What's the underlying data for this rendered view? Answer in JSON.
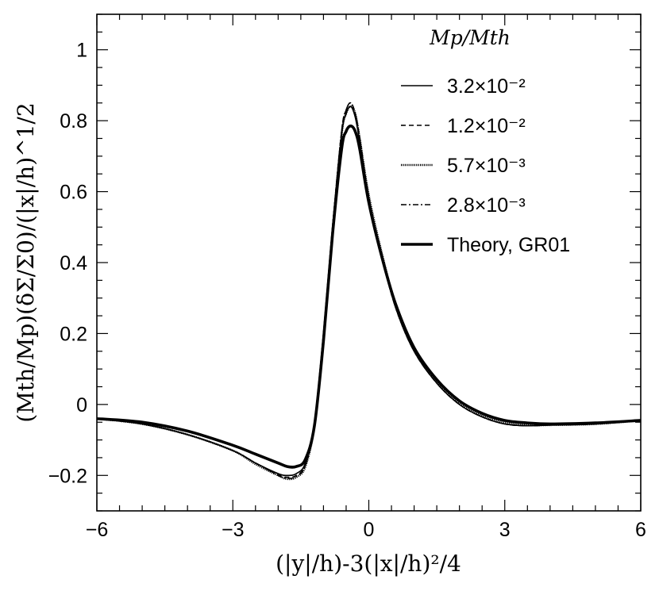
{
  "chart_data": {
    "type": "line",
    "xlabel": "(|y|/h)-3(|x|/h)²/4",
    "ylabel": "(Mth/Mp)(δΣ/Σ0)/(|x|/h)^1/2",
    "xlim": [
      -6,
      6
    ],
    "ylim": [
      -0.3,
      1.1
    ],
    "xticks": [
      -6,
      -3,
      0,
      3,
      6
    ],
    "xtick_labels": [
      "−6",
      "−3",
      "0",
      "3",
      "6"
    ],
    "yticks": [
      -0.2,
      0,
      0.2,
      0.4,
      0.6,
      0.8,
      1
    ],
    "ytick_labels": [
      "−0.2",
      "0",
      "0.2",
      "0.4",
      "0.6",
      "0.8",
      "1"
    ],
    "legend": {
      "title": "Mp/Mth",
      "position": "top-right",
      "entries": [
        "3.2×10⁻²",
        "1.2×10⁻²",
        "5.7×10⁻³",
        "2.8×10⁻³",
        "Theory, GR01"
      ]
    },
    "series": [
      {
        "name": "3.2×10⁻²",
        "style": "solid",
        "x": [
          -6,
          -5,
          -4,
          -3,
          -2.5,
          -2,
          -1.8,
          -1.6,
          -1.4,
          -1.2,
          -1,
          -0.8,
          -0.6,
          -0.5,
          -0.4,
          -0.3,
          -0.2,
          0,
          0.3,
          0.6,
          1,
          1.5,
          2,
          2.5,
          3,
          3.5,
          4,
          5,
          6
        ],
        "values": [
          -0.04,
          -0.055,
          -0.085,
          -0.13,
          -0.165,
          -0.195,
          -0.2,
          -0.195,
          -0.165,
          -0.05,
          0.2,
          0.5,
          0.76,
          0.82,
          0.84,
          0.81,
          0.74,
          0.58,
          0.41,
          0.27,
          0.15,
          0.06,
          0.0,
          -0.035,
          -0.055,
          -0.06,
          -0.058,
          -0.055,
          -0.045
        ]
      },
      {
        "name": "1.2×10⁻²",
        "style": "dashed",
        "x": [
          -6,
          -5,
          -4,
          -3,
          -2.5,
          -2,
          -1.8,
          -1.6,
          -1.4,
          -1.2,
          -1,
          -0.8,
          -0.6,
          -0.5,
          -0.4,
          -0.3,
          -0.2,
          0,
          0.3,
          0.6,
          1,
          1.5,
          2,
          2.5,
          3,
          3.5,
          4,
          5,
          6
        ],
        "values": [
          -0.04,
          -0.055,
          -0.085,
          -0.13,
          -0.165,
          -0.198,
          -0.205,
          -0.2,
          -0.17,
          -0.055,
          0.2,
          0.5,
          0.77,
          0.83,
          0.85,
          0.82,
          0.75,
          0.585,
          0.41,
          0.27,
          0.15,
          0.06,
          0.0,
          -0.035,
          -0.055,
          -0.06,
          -0.058,
          -0.055,
          -0.045
        ]
      },
      {
        "name": "5.7×10⁻³",
        "style": "dense-dotted",
        "x": [
          -6,
          -5,
          -4,
          -3,
          -2.5,
          -2,
          -1.8,
          -1.6,
          -1.4,
          -1.2,
          -1,
          -0.8,
          -0.6,
          -0.5,
          -0.4,
          -0.3,
          -0.2,
          0,
          0.3,
          0.6,
          1,
          1.5,
          2,
          2.5,
          3,
          3.5,
          4,
          5,
          6
        ],
        "values": [
          -0.04,
          -0.055,
          -0.085,
          -0.13,
          -0.168,
          -0.2,
          -0.21,
          -0.205,
          -0.175,
          -0.06,
          0.19,
          0.49,
          0.76,
          0.82,
          0.84,
          0.82,
          0.75,
          0.59,
          0.42,
          0.28,
          0.155,
          0.065,
          0.005,
          -0.03,
          -0.05,
          -0.058,
          -0.058,
          -0.055,
          -0.045
        ]
      },
      {
        "name": "2.8×10⁻³",
        "style": "dash-dot",
        "x": [
          -6,
          -5,
          -4,
          -3,
          -2.5,
          -2,
          -1.8,
          -1.6,
          -1.4,
          -1.2,
          -1,
          -0.8,
          -0.6,
          -0.5,
          -0.4,
          -0.3,
          -0.2,
          0,
          0.3,
          0.6,
          1,
          1.5,
          2,
          2.5,
          3,
          3.5,
          4,
          5,
          6
        ],
        "values": [
          -0.04,
          -0.055,
          -0.085,
          -0.13,
          -0.165,
          -0.2,
          -0.208,
          -0.203,
          -0.172,
          -0.058,
          0.2,
          0.5,
          0.77,
          0.83,
          0.85,
          0.82,
          0.75,
          0.585,
          0.41,
          0.27,
          0.15,
          0.06,
          0.0,
          -0.035,
          -0.055,
          -0.06,
          -0.058,
          -0.055,
          -0.045
        ]
      },
      {
        "name": "Theory, GR01",
        "style": "thick",
        "x": [
          -6,
          -5,
          -4,
          -3,
          -2.5,
          -2,
          -1.8,
          -1.6,
          -1.4,
          -1.2,
          -1,
          -0.8,
          -0.6,
          -0.5,
          -0.4,
          -0.3,
          -0.2,
          0,
          0.3,
          0.6,
          1,
          1.5,
          2,
          2.5,
          3,
          3.5,
          4,
          5,
          6
        ],
        "values": [
          -0.04,
          -0.05,
          -0.075,
          -0.115,
          -0.14,
          -0.165,
          -0.175,
          -0.175,
          -0.155,
          -0.06,
          0.18,
          0.48,
          0.72,
          0.77,
          0.785,
          0.77,
          0.72,
          0.57,
          0.41,
          0.28,
          0.16,
          0.07,
          0.01,
          -0.025,
          -0.045,
          -0.052,
          -0.055,
          -0.052,
          -0.045
        ]
      }
    ]
  }
}
